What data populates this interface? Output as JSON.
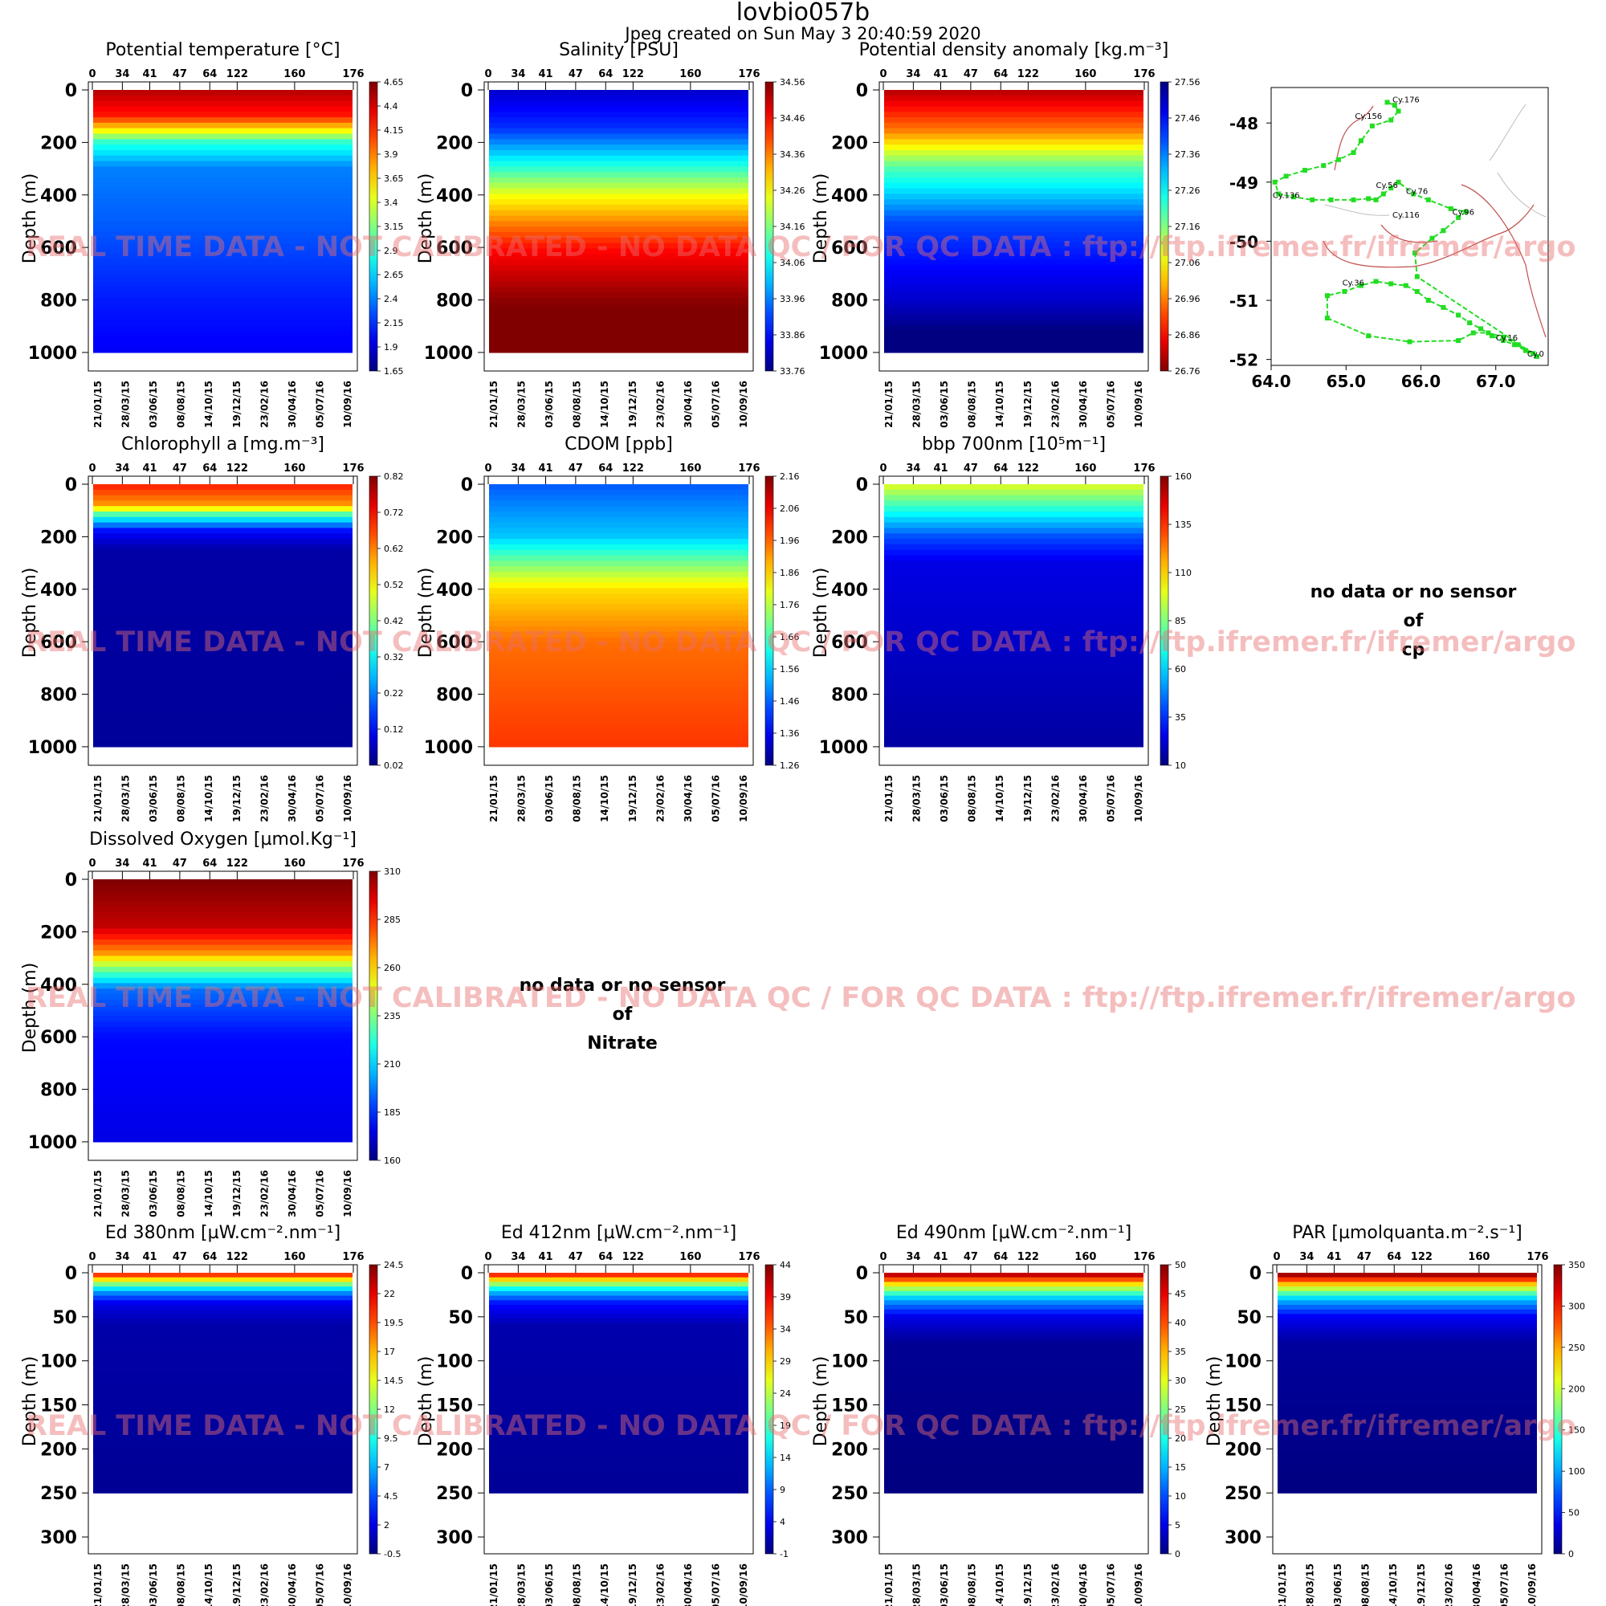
{
  "page": {
    "title": "lovbio057b",
    "subtitle": "Jpeg created on  Sun May  3 20:40:59 2020",
    "watermark": "REAL TIME DATA - NOT CALIBRATED - NO DATA QC   /  FOR QC DATA : ftp://ftp.ifremer.fr/ifremer/argo",
    "colors": {
      "watermark": "#e86e6e",
      "track": "#22dd22",
      "coast": "#c0504d",
      "contour": "#bbbbbb"
    }
  },
  "no_data": [
    {
      "lines": [
        "no data or no sensor",
        "of",
        "cp"
      ]
    },
    {
      "lines": [
        "no data or no sensor",
        "of",
        "Nitrate"
      ]
    }
  ],
  "chart_data": [
    {
      "type": "heatmap",
      "title": "Potential temperature [°C]",
      "colormap": "jet",
      "ylabel": "Depth (m)",
      "ylim": [
        1040,
        0
      ],
      "yticks": [
        0,
        200,
        400,
        600,
        800,
        1000
      ],
      "top_ticks": [
        "0",
        "34",
        "41",
        "47",
        "64",
        "122",
        "160",
        "176"
      ],
      "date_ticks": [
        "21/01/15",
        "28/03/15",
        "03/06/15",
        "08/08/15",
        "14/10/15",
        "19/12/15",
        "23/02/16",
        "30/04/16",
        "05/07/16",
        "10/09/16"
      ],
      "colorbar": [
        "4.65",
        "4.4",
        "4.15",
        "3.9",
        "3.65",
        "3.4",
        "3.15",
        "2.9",
        "2.65",
        "2.4",
        "2.15",
        "1.9",
        "1.65"
      ],
      "profile": [
        [
          0,
          4.5
        ],
        [
          100,
          4.2
        ],
        [
          150,
          3.6
        ],
        [
          200,
          2.9
        ],
        [
          300,
          2.4
        ],
        [
          500,
          2.3
        ],
        [
          800,
          2.1
        ],
        [
          1000,
          2.0
        ]
      ]
    },
    {
      "type": "heatmap",
      "title": "Salinity [PSU]",
      "colormap": "jet",
      "ylabel": "Depth (m)",
      "ylim": [
        1040,
        0
      ],
      "yticks": [
        0,
        200,
        400,
        600,
        800,
        1000
      ],
      "top_ticks": [
        "0",
        "34",
        "41",
        "47",
        "64",
        "122",
        "160",
        "176"
      ],
      "date_ticks": [
        "21/01/15",
        "28/03/15",
        "03/06/15",
        "08/08/15",
        "14/10/15",
        "19/12/15",
        "23/02/16",
        "30/04/16",
        "05/07/16",
        "10/09/16"
      ],
      "colorbar": [
        "34.56",
        "34.46",
        "34.36",
        "34.26",
        "34.16",
        "34.06",
        "33.96",
        "33.86",
        "33.76"
      ],
      "profile": [
        [
          0,
          33.82
        ],
        [
          150,
          33.9
        ],
        [
          300,
          34.1
        ],
        [
          400,
          34.25
        ],
        [
          600,
          34.45
        ],
        [
          800,
          34.55
        ],
        [
          1000,
          34.6
        ]
      ]
    },
    {
      "type": "heatmap",
      "title": "Potential density anomaly [kg.m⁻³]",
      "colormap": "jet_r",
      "ylabel": "Depth (m)",
      "ylim": [
        1040,
        0
      ],
      "yticks": [
        0,
        200,
        400,
        600,
        800,
        1000
      ],
      "top_ticks": [
        "0",
        "34",
        "41",
        "47",
        "64",
        "122",
        "160",
        "176"
      ],
      "date_ticks": [
        "21/01/15",
        "28/03/15",
        "03/06/15",
        "08/08/15",
        "14/10/15",
        "19/12/15",
        "23/02/16",
        "30/04/16",
        "05/07/16",
        "10/09/16"
      ],
      "colorbar": [
        "27.56",
        "27.46",
        "27.36",
        "27.26",
        "27.16",
        "27.06",
        "26.96",
        "26.86",
        "26.76"
      ],
      "profile": [
        [
          0,
          26.8
        ],
        [
          150,
          26.95
        ],
        [
          300,
          27.2
        ],
        [
          500,
          27.4
        ],
        [
          800,
          27.5
        ],
        [
          1000,
          27.6
        ]
      ]
    },
    {
      "type": "scatter",
      "title": "",
      "xlim": [
        64.0,
        67.7
      ],
      "ylim": [
        -52.1,
        -47.4
      ],
      "xticks": [
        "64.0",
        "65.0",
        "66.0",
        "67.0"
      ],
      "yticks": [
        "-48",
        "-49",
        "-50",
        "-51",
        "-52"
      ],
      "labels": [
        {
          "text": "Cy.176",
          "x": 65.62,
          "y": -47.65
        },
        {
          "text": "Cy.156",
          "x": 65.12,
          "y": -47.93
        },
        {
          "text": "Cy.136",
          "x": 64.02,
          "y": -49.27
        },
        {
          "text": "Cy.56",
          "x": 65.4,
          "y": -49.1
        },
        {
          "text": "Cy.76",
          "x": 65.8,
          "y": -49.2
        },
        {
          "text": "Cy.116",
          "x": 65.62,
          "y": -49.6
        },
        {
          "text": "Cy.96",
          "x": 66.42,
          "y": -49.55
        },
        {
          "text": "Cy.36",
          "x": 64.95,
          "y": -50.75
        },
        {
          "text": "Cy.16",
          "x": 67.0,
          "y": -51.68
        },
        {
          "text": "Cy.0",
          "x": 67.42,
          "y": -51.95
        }
      ],
      "track": [
        [
          67.55,
          -51.95
        ],
        [
          67.4,
          -51.85
        ],
        [
          67.25,
          -51.75
        ],
        [
          67.1,
          -51.68
        ],
        [
          66.95,
          -51.6
        ],
        [
          66.8,
          -51.48
        ],
        [
          66.65,
          -51.38
        ],
        [
          66.5,
          -51.25
        ],
        [
          66.3,
          -51.12
        ],
        [
          66.1,
          -51.0
        ],
        [
          65.95,
          -50.85
        ],
        [
          65.8,
          -50.75
        ],
        [
          65.6,
          -50.72
        ],
        [
          65.4,
          -50.68
        ],
        [
          65.2,
          -50.75
        ],
        [
          64.98,
          -50.85
        ],
        [
          64.75,
          -50.92
        ],
        [
          64.75,
          -51.3
        ],
        [
          65.3,
          -51.6
        ],
        [
          65.85,
          -51.7
        ],
        [
          66.5,
          -51.68
        ],
        [
          66.7,
          -51.55
        ],
        [
          66.9,
          -51.55
        ],
        [
          67.1,
          -51.62
        ],
        [
          67.3,
          -51.75
        ],
        [
          67.5,
          -51.9
        ],
        [
          65.95,
          -50.6
        ],
        [
          65.92,
          -50.2
        ],
        [
          66.15,
          -49.95
        ],
        [
          66.3,
          -49.82
        ],
        [
          66.5,
          -49.6
        ],
        [
          66.6,
          -49.5
        ],
        [
          66.4,
          -49.45
        ],
        [
          66.1,
          -49.3
        ],
        [
          65.9,
          -49.2
        ],
        [
          65.7,
          -49.0
        ],
        [
          65.6,
          -49.1
        ],
        [
          65.5,
          -49.2
        ],
        [
          65.4,
          -49.3
        ],
        [
          65.3,
          -49.28
        ],
        [
          65.1,
          -49.3
        ],
        [
          64.8,
          -49.3
        ],
        [
          64.55,
          -49.3
        ],
        [
          64.3,
          -49.25
        ],
        [
          64.1,
          -49.2
        ],
        [
          64.05,
          -49.0
        ],
        [
          64.2,
          -48.9
        ],
        [
          64.45,
          -48.8
        ],
        [
          64.7,
          -48.72
        ],
        [
          64.9,
          -48.62
        ],
        [
          65.1,
          -48.5
        ],
        [
          65.2,
          -48.3
        ],
        [
          65.35,
          -48.05
        ],
        [
          65.6,
          -47.95
        ],
        [
          65.7,
          -47.8
        ],
        [
          65.65,
          -47.7
        ],
        [
          65.55,
          -47.65
        ]
      ]
    },
    {
      "type": "heatmap",
      "title": "Chlorophyll a [mg.m⁻³]",
      "colormap": "jet",
      "ylabel": "Depth (m)",
      "ylim": [
        1040,
        0
      ],
      "yticks": [
        0,
        200,
        400,
        600,
        800,
        1000
      ],
      "top_ticks": [
        "0",
        "34",
        "41",
        "47",
        "64",
        "122",
        "160",
        "176"
      ],
      "date_ticks": [
        "21/01/15",
        "28/03/15",
        "03/06/15",
        "08/08/15",
        "14/10/15",
        "19/12/15",
        "23/02/16",
        "30/04/16",
        "05/07/16",
        "10/09/16"
      ],
      "colorbar": [
        "0.82",
        "0.72",
        "0.62",
        "0.52",
        "0.42",
        "0.32",
        "0.22",
        "0.12",
        "0.02"
      ],
      "profile": [
        [
          0,
          0.7
        ],
        [
          80,
          0.6
        ],
        [
          120,
          0.35
        ],
        [
          180,
          0.12
        ],
        [
          250,
          0.05
        ],
        [
          1000,
          0.04
        ]
      ]
    },
    {
      "type": "heatmap",
      "title": "CDOM  [ppb]",
      "colormap": "jet",
      "ylabel": "Depth (m)",
      "ylim": [
        1040,
        0
      ],
      "yticks": [
        0,
        200,
        400,
        600,
        800,
        1000
      ],
      "top_ticks": [
        "0",
        "34",
        "41",
        "47",
        "64",
        "122",
        "160",
        "176"
      ],
      "date_ticks": [
        "21/01/15",
        "28/03/15",
        "03/06/15",
        "08/08/15",
        "14/10/15",
        "19/12/15",
        "23/02/16",
        "30/04/16",
        "05/07/16",
        "10/09/16"
      ],
      "colorbar": [
        "2.16",
        "2.06",
        "1.96",
        "1.86",
        "1.76",
        "1.66",
        "1.56",
        "1.46",
        "1.36",
        "1.26"
      ],
      "profile": [
        [
          0,
          1.45
        ],
        [
          200,
          1.55
        ],
        [
          300,
          1.7
        ],
        [
          400,
          1.85
        ],
        [
          600,
          1.95
        ],
        [
          1000,
          2.0
        ]
      ]
    },
    {
      "type": "heatmap",
      "title": "bbp 700nm [10⁵m⁻¹]",
      "colormap": "jet",
      "ylabel": "Depth (m)",
      "ylim": [
        1040,
        0
      ],
      "yticks": [
        0,
        200,
        400,
        600,
        800,
        1000
      ],
      "top_ticks": [
        "0",
        "34",
        "41",
        "47",
        "64",
        "122",
        "160",
        "176"
      ],
      "date_ticks": [
        "21/01/15",
        "28/03/15",
        "03/06/15",
        "08/08/15",
        "14/10/15",
        "19/12/15",
        "23/02/16",
        "30/04/16",
        "05/07/16",
        "10/09/16"
      ],
      "colorbar": [
        "160",
        "135",
        "110",
        "85",
        "60",
        "35",
        "10"
      ],
      "profile": [
        [
          0,
          100
        ],
        [
          100,
          70
        ],
        [
          200,
          40
        ],
        [
          300,
          25
        ],
        [
          1000,
          15
        ]
      ]
    },
    {
      "type": "heatmap",
      "title": "Dissolved Oxygen [µmol.Kg⁻¹]",
      "colormap": "jet",
      "ylabel": "Depth (m)",
      "ylim": [
        1040,
        0
      ],
      "yticks": [
        0,
        200,
        400,
        600,
        800,
        1000
      ],
      "top_ticks": [
        "0",
        "34",
        "41",
        "47",
        "64",
        "122",
        "160",
        "176"
      ],
      "date_ticks": [
        "21/01/15",
        "28/03/15",
        "03/06/15",
        "08/08/15",
        "14/10/15",
        "19/12/15",
        "23/02/16",
        "30/04/16",
        "05/07/16",
        "10/09/16"
      ],
      "colorbar": [
        "310",
        "285",
        "260",
        "235",
        "210",
        "185",
        "160"
      ],
      "profile": [
        [
          0,
          310
        ],
        [
          180,
          300
        ],
        [
          280,
          270
        ],
        [
          350,
          230
        ],
        [
          420,
          195
        ],
        [
          600,
          180
        ],
        [
          1000,
          175
        ]
      ]
    },
    {
      "type": "heatmap",
      "title": "Ed 380nm [µW.cm⁻².nm⁻¹]",
      "colormap": "jet",
      "ylabel": "Depth (m)",
      "ylim": [
        310,
        0
      ],
      "yticks": [
        0,
        50,
        100,
        150,
        200,
        250,
        300
      ],
      "top_ticks": [
        "0",
        "34",
        "41",
        "47",
        "64",
        "122",
        "160",
        "176"
      ],
      "date_ticks": [
        "21/01/15",
        "28/03/15",
        "03/06/15",
        "08/08/15",
        "14/10/15",
        "19/12/15",
        "23/02/16",
        "30/04/16",
        "05/07/16",
        "10/09/16"
      ],
      "colorbar": [
        "24.5",
        "22",
        "19.5",
        "17",
        "14.5",
        "12",
        "9.5",
        "7",
        "4.5",
        "2",
        "-0.5"
      ],
      "profile": [
        [
          0,
          22
        ],
        [
          10,
          14
        ],
        [
          20,
          7
        ],
        [
          35,
          2
        ],
        [
          60,
          0.5
        ],
        [
          250,
          0
        ]
      ]
    },
    {
      "type": "heatmap",
      "title": "Ed 412nm [µW.cm⁻².nm⁻¹]",
      "colormap": "jet",
      "ylabel": "Depth (m)",
      "ylim": [
        310,
        0
      ],
      "yticks": [
        0,
        50,
        100,
        150,
        200,
        250,
        300
      ],
      "top_ticks": [
        "0",
        "34",
        "41",
        "47",
        "64",
        "122",
        "160",
        "176"
      ],
      "date_ticks": [
        "21/01/15",
        "28/03/15",
        "03/06/15",
        "08/08/15",
        "14/10/15",
        "19/12/15",
        "23/02/16",
        "30/04/16",
        "05/07/16",
        "10/09/16"
      ],
      "colorbar": [
        "44",
        "39",
        "34",
        "29",
        "24",
        "19",
        "14",
        "9",
        "4",
        "-1"
      ],
      "profile": [
        [
          0,
          40
        ],
        [
          10,
          26
        ],
        [
          20,
          14
        ],
        [
          35,
          5
        ],
        [
          60,
          1
        ],
        [
          250,
          0
        ]
      ]
    },
    {
      "type": "heatmap",
      "title": "Ed 490nm [µW.cm⁻².nm⁻¹]",
      "colormap": "jet",
      "ylabel": "Depth (m)",
      "ylim": [
        310,
        0
      ],
      "yticks": [
        0,
        50,
        100,
        150,
        200,
        250,
        300
      ],
      "top_ticks": [
        "0",
        "34",
        "41",
        "47",
        "64",
        "122",
        "160",
        "176"
      ],
      "date_ticks": [
        "21/01/15",
        "28/03/15",
        "03/06/15",
        "08/08/15",
        "14/10/15",
        "19/12/15",
        "23/02/16",
        "30/04/16",
        "05/07/16",
        "10/09/16"
      ],
      "colorbar": [
        "50",
        "45",
        "40",
        "35",
        "30",
        "25",
        "20",
        "15",
        "10",
        "5",
        "0"
      ],
      "profile": [
        [
          0,
          50
        ],
        [
          15,
          30
        ],
        [
          30,
          15
        ],
        [
          50,
          5
        ],
        [
          80,
          1
        ],
        [
          250,
          0
        ]
      ]
    },
    {
      "type": "heatmap",
      "title": "PAR [µmolquanta.m⁻².s⁻¹]",
      "colormap": "jet",
      "ylabel": "Depth (m)",
      "ylim": [
        310,
        0
      ],
      "yticks": [
        0,
        50,
        100,
        150,
        200,
        250,
        300
      ],
      "top_ticks": [
        "0",
        "34",
        "41",
        "47",
        "64",
        "122",
        "160",
        "176"
      ],
      "date_ticks": [
        "21/01/15",
        "28/03/15",
        "03/06/15",
        "08/08/15",
        "14/10/15",
        "19/12/15",
        "23/02/16",
        "30/04/16",
        "05/07/16",
        "10/09/16"
      ],
      "colorbar": [
        "350",
        "300",
        "250",
        "200",
        "150",
        "100",
        "50",
        "0"
      ],
      "profile": [
        [
          0,
          360
        ],
        [
          15,
          220
        ],
        [
          30,
          110
        ],
        [
          50,
          40
        ],
        [
          80,
          10
        ],
        [
          250,
          0
        ]
      ]
    }
  ]
}
